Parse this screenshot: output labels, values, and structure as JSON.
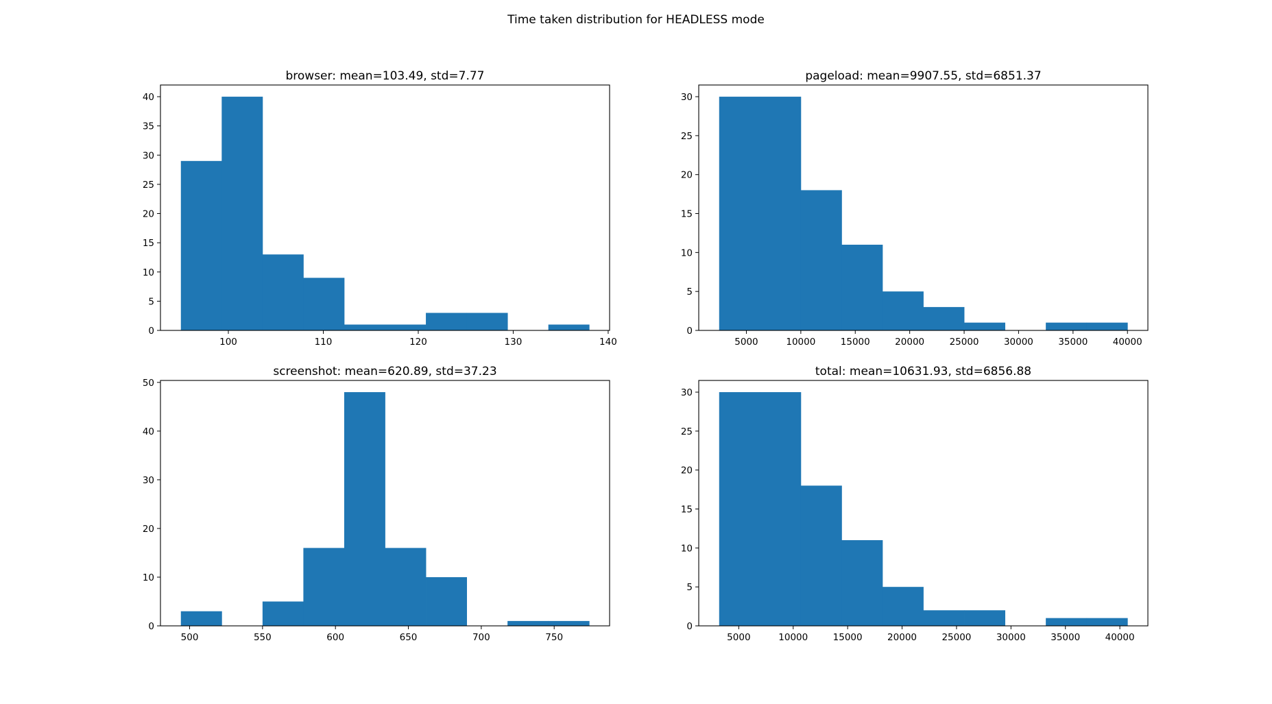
{
  "figure": {
    "suptitle": "Time taken distribution for HEADLESS mode",
    "bar_color": "#1f77b4"
  },
  "chart_data": [
    {
      "type": "bar",
      "title": "browser: mean=103.49, std=7.77",
      "xlabel": "",
      "ylabel": "",
      "bin_edges": [
        95.0,
        99.3,
        103.6,
        107.9,
        112.2,
        116.5,
        120.8,
        125.1,
        129.4,
        133.7,
        138.0
      ],
      "values": [
        29,
        40,
        13,
        9,
        1,
        1,
        3,
        3,
        0,
        1
      ],
      "xlim": [
        92.85,
        140.15
      ],
      "ylim": [
        0,
        42
      ],
      "xticks": [
        100,
        110,
        120,
        130,
        140
      ],
      "xtick_labels": [
        "100",
        "110",
        "120",
        "130",
        "140"
      ],
      "yticks": [
        0,
        5,
        10,
        15,
        20,
        25,
        30,
        35,
        40
      ],
      "ytick_labels": [
        "0",
        "5",
        "10",
        "15",
        "20",
        "25",
        "30",
        "35",
        "40"
      ]
    },
    {
      "type": "bar",
      "title": "pageload: mean=9907.55, std=6851.37",
      "xlabel": "",
      "ylabel": "",
      "bin_edges": [
        2500,
        6250,
        10000,
        13750,
        17500,
        21250,
        25000,
        28750,
        32500,
        36250,
        40000
      ],
      "values": [
        30,
        30,
        18,
        11,
        5,
        3,
        1,
        0,
        1,
        1
      ],
      "xlim": [
        625,
        41875
      ],
      "ylim": [
        0,
        31.5
      ],
      "xticks": [
        5000,
        10000,
        15000,
        20000,
        25000,
        30000,
        35000,
        40000
      ],
      "xtick_labels": [
        "5000",
        "10000",
        "15000",
        "20000",
        "25000",
        "30000",
        "35000",
        "40000"
      ],
      "yticks": [
        0,
        5,
        10,
        15,
        20,
        25,
        30
      ],
      "ytick_labels": [
        "0",
        "5",
        "10",
        "15",
        "20",
        "25",
        "30"
      ]
    },
    {
      "type": "bar",
      "title": "screenshot: mean=620.89, std=37.23",
      "xlabel": "",
      "ylabel": "",
      "bin_edges": [
        494,
        522,
        550,
        578,
        606,
        634,
        662,
        690,
        718,
        746,
        774
      ],
      "values": [
        3,
        0,
        5,
        16,
        48,
        16,
        10,
        0,
        1,
        1
      ],
      "xlim": [
        480,
        788
      ],
      "ylim": [
        0,
        50.4
      ],
      "xticks": [
        500,
        550,
        600,
        650,
        700,
        750
      ],
      "xtick_labels": [
        "500",
        "550",
        "600",
        "650",
        "700",
        "750"
      ],
      "yticks": [
        0,
        10,
        20,
        30,
        40,
        50
      ],
      "ytick_labels": [
        "0",
        "10",
        "20",
        "30",
        "40",
        "50"
      ]
    },
    {
      "type": "bar",
      "title": "total: mean=10631.93, std=6856.88",
      "xlabel": "",
      "ylabel": "",
      "bin_edges": [
        3200,
        6950,
        10700,
        14450,
        18200,
        21950,
        25700,
        29450,
        33200,
        36950,
        40700
      ],
      "values": [
        30,
        30,
        18,
        11,
        5,
        2,
        2,
        0,
        1,
        1
      ],
      "xlim": [
        1325,
        42575
      ],
      "ylim": [
        0,
        31.5
      ],
      "xticks": [
        5000,
        10000,
        15000,
        20000,
        25000,
        30000,
        35000,
        40000
      ],
      "xtick_labels": [
        "5000",
        "10000",
        "15000",
        "20000",
        "25000",
        "30000",
        "35000",
        "40000"
      ],
      "yticks": [
        0,
        5,
        10,
        15,
        20,
        25,
        30
      ],
      "ytick_labels": [
        "0",
        "5",
        "10",
        "15",
        "20",
        "25",
        "30"
      ]
    }
  ]
}
